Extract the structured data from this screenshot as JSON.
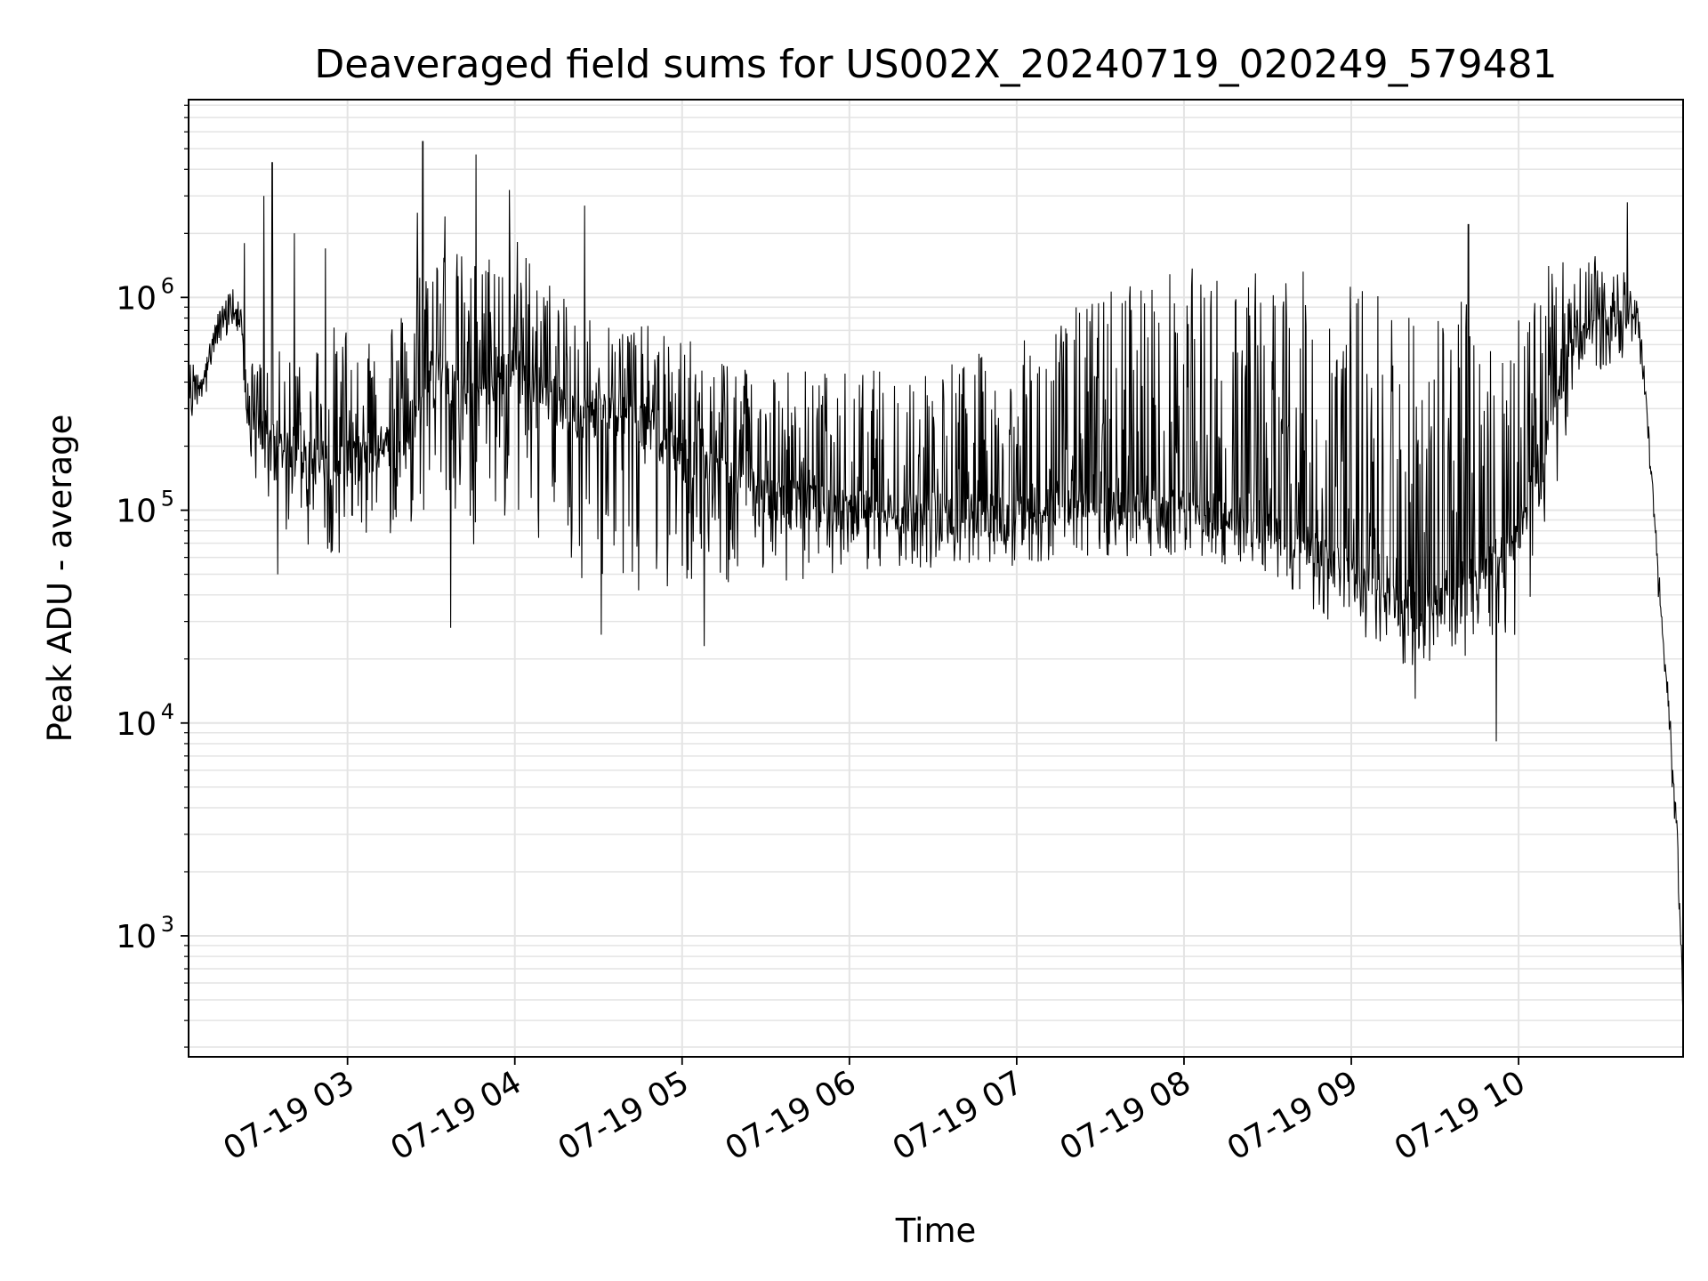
{
  "chart_data": {
    "type": "line",
    "title": "Deaveraged field sums for US002X_20240719_020249_579481",
    "xlabel": "Time",
    "ylabel": "Peak ADU - average",
    "yscale": "log",
    "ylim": [
      270,
      8500000
    ],
    "xlim": [
      "2024-07-19 02:03",
      "2024-07-19 10:59"
    ],
    "grid": true,
    "line_color": "#000000",
    "grid_color": "#e4e4e4",
    "x_ticks": [
      {
        "t": "2024-07-19 03:00",
        "label": "07-19 03"
      },
      {
        "t": "2024-07-19 04:00",
        "label": "07-19 04"
      },
      {
        "t": "2024-07-19 05:00",
        "label": "07-19 05"
      },
      {
        "t": "2024-07-19 06:00",
        "label": "07-19 06"
      },
      {
        "t": "2024-07-19 07:00",
        "label": "07-19 07"
      },
      {
        "t": "2024-07-19 08:00",
        "label": "07-19 08"
      },
      {
        "t": "2024-07-19 09:00",
        "label": "07-19 09"
      },
      {
        "t": "2024-07-19 10:00",
        "label": "07-19 10"
      }
    ],
    "y_ticks": [
      {
        "value": 1000,
        "base": "10",
        "exp": "3"
      },
      {
        "value": 10000,
        "base": "10",
        "exp": "4"
      },
      {
        "value": 100000,
        "base": "10",
        "exp": "5"
      },
      {
        "value": 1000000,
        "base": "10",
        "exp": "6"
      }
    ],
    "envelope": [
      {
        "t": "2024-07-19 02:03",
        "base": 300000,
        "lo": 280000,
        "hi": 500000
      },
      {
        "t": "2024-07-19 02:10",
        "base": 500000,
        "lo": 450000,
        "hi": 650000
      },
      {
        "t": "2024-07-19 02:18",
        "base": 900000,
        "lo": 700000,
        "hi": 1200000
      },
      {
        "t": "2024-07-19 02:22",
        "base": 700000,
        "lo": 500000,
        "hi": 900000
      },
      {
        "t": "2024-07-19 02:25",
        "base": 250000,
        "lo": 150000,
        "hi": 500000
      },
      {
        "t": "2024-07-19 02:40",
        "base": 180000,
        "lo": 70000,
        "hi": 600000
      },
      {
        "t": "2024-07-19 03:00",
        "base": 170000,
        "lo": 60000,
        "hi": 800000
      },
      {
        "t": "2024-07-19 03:20",
        "base": 230000,
        "lo": 80000,
        "hi": 900000
      },
      {
        "t": "2024-07-19 03:30",
        "base": 450000,
        "lo": 100000,
        "hi": 2000000
      },
      {
        "t": "2024-07-19 03:45",
        "base": 350000,
        "lo": 60000,
        "hi": 1500000
      },
      {
        "t": "2024-07-19 04:00",
        "base": 500000,
        "lo": 90000,
        "hi": 2000000
      },
      {
        "t": "2024-07-19 04:20",
        "base": 280000,
        "lo": 50000,
        "hi": 900000
      },
      {
        "t": "2024-07-19 04:40",
        "base": 300000,
        "lo": 40000,
        "hi": 800000
      },
      {
        "t": "2024-07-19 05:00",
        "base": 180000,
        "lo": 45000,
        "hi": 650000
      },
      {
        "t": "2024-07-19 05:30",
        "base": 120000,
        "lo": 45000,
        "hi": 500000
      },
      {
        "t": "2024-07-19 06:00",
        "base": 100000,
        "lo": 50000,
        "hi": 450000
      },
      {
        "t": "2024-07-19 06:30",
        "base": 100000,
        "lo": 50000,
        "hi": 500000
      },
      {
        "t": "2024-07-19 07:00",
        "base": 95000,
        "lo": 55000,
        "hi": 600000
      },
      {
        "t": "2024-07-19 07:20",
        "base": 110000,
        "lo": 60000,
        "hi": 900000
      },
      {
        "t": "2024-07-19 07:40",
        "base": 100000,
        "lo": 60000,
        "hi": 1300000
      },
      {
        "t": "2024-07-19 08:00",
        "base": 100000,
        "lo": 60000,
        "hi": 1400000
      },
      {
        "t": "2024-07-19 08:30",
        "base": 90000,
        "lo": 50000,
        "hi": 1400000
      },
      {
        "t": "2024-07-19 08:50",
        "base": 60000,
        "lo": 30000,
        "hi": 1300000
      },
      {
        "t": "2024-07-19 09:20",
        "base": 35000,
        "lo": 18000,
        "hi": 1100000
      },
      {
        "t": "2024-07-19 09:40",
        "base": 40000,
        "lo": 20000,
        "hi": 1000000
      },
      {
        "t": "2024-07-19 10:00",
        "base": 80000,
        "lo": 25000,
        "hi": 1100000
      },
      {
        "t": "2024-07-19 10:10",
        "base": 200000,
        "lo": 60000,
        "hi": 1400000
      },
      {
        "t": "2024-07-19 10:20",
        "base": 700000,
        "lo": 400000,
        "hi": 1600000
      },
      {
        "t": "2024-07-19 10:40",
        "base": 900000,
        "lo": 500000,
        "hi": 1500000
      },
      {
        "t": "2024-07-19 10:44",
        "base": 600000,
        "lo": 500000,
        "hi": 700000
      },
      {
        "t": "2024-07-19 10:47",
        "base": 200000,
        "lo": 180000,
        "hi": 220000
      },
      {
        "t": "2024-07-19 10:50",
        "base": 50000,
        "lo": 45000,
        "hi": 55000
      },
      {
        "t": "2024-07-19 10:54",
        "base": 10000,
        "lo": 9000,
        "hi": 11000
      },
      {
        "t": "2024-07-19 10:57",
        "base": 3000,
        "lo": 2800,
        "hi": 3200
      },
      {
        "t": "2024-07-19 10:59",
        "base": 400,
        "lo": 400,
        "hi": 400
      }
    ],
    "spikes": [
      {
        "t": "2024-07-19 02:23",
        "value": 1800000
      },
      {
        "t": "2024-07-19 02:30",
        "value": 3000000
      },
      {
        "t": "2024-07-19 02:33",
        "value": 4300000
      },
      {
        "t": "2024-07-19 02:41",
        "value": 2000000
      },
      {
        "t": "2024-07-19 02:52",
        "value": 1700000
      },
      {
        "t": "2024-07-19 03:25",
        "value": 2500000
      },
      {
        "t": "2024-07-19 03:27",
        "value": 5400000
      },
      {
        "t": "2024-07-19 03:35",
        "value": 2400000
      },
      {
        "t": "2024-07-19 03:46",
        "value": 4700000
      },
      {
        "t": "2024-07-19 03:58",
        "value": 3200000
      },
      {
        "t": "2024-07-19 04:25",
        "value": 2700000
      },
      {
        "t": "2024-07-19 09:42",
        "value": 2200000
      },
      {
        "t": "2024-07-19 10:39",
        "value": 2800000
      },
      {
        "t": "2024-07-19 02:35",
        "value": 50000
      },
      {
        "t": "2024-07-19 03:37",
        "value": 28000
      },
      {
        "t": "2024-07-19 04:31",
        "value": 26000
      },
      {
        "t": "2024-07-19 05:08",
        "value": 23000
      },
      {
        "t": "2024-07-19 09:23",
        "value": 13000
      },
      {
        "t": "2024-07-19 09:52",
        "value": 8200
      }
    ]
  }
}
